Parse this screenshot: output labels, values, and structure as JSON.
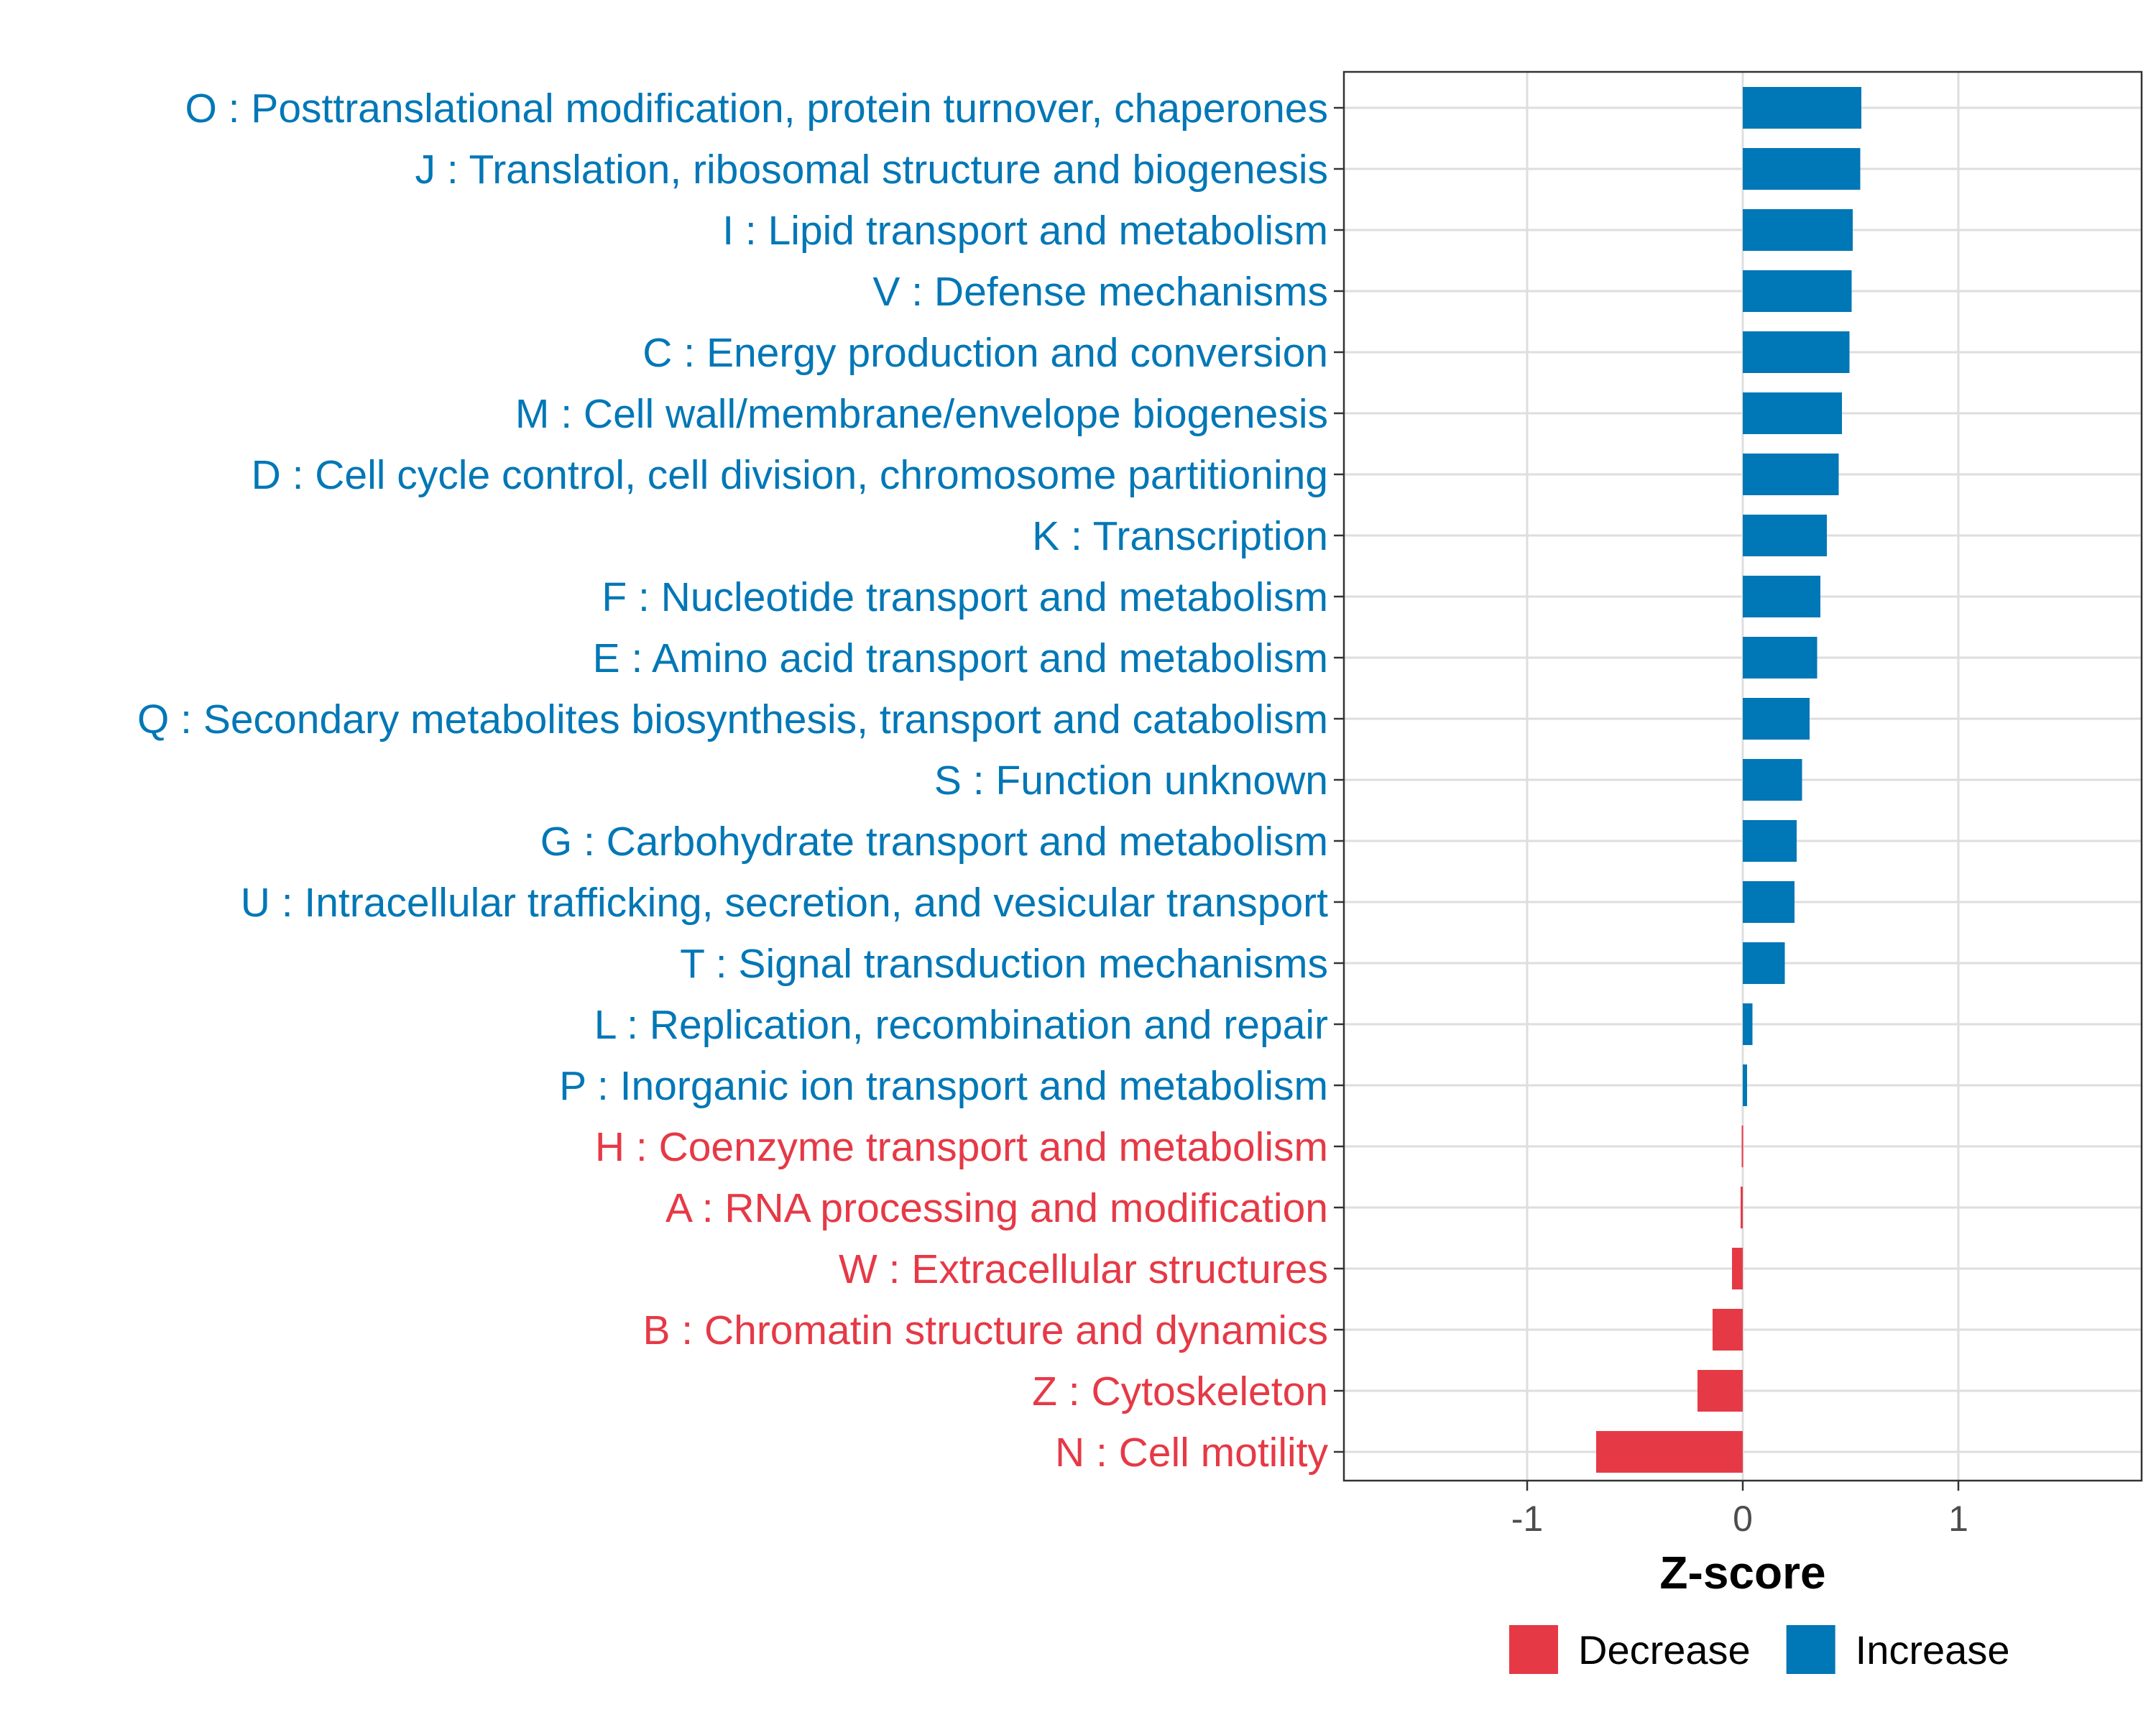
{
  "chart_data": {
    "type": "bar",
    "orientation": "horizontal",
    "title": "",
    "xlabel": "Z-score",
    "ylabel": "",
    "xlim": [
      -1.85,
      1.85
    ],
    "xticks": [
      {
        "value": -1,
        "label": "-1"
      },
      {
        "value": 0,
        "label": "0"
      },
      {
        "value": 1,
        "label": "1"
      }
    ],
    "grid": true,
    "legend": {
      "position": "bottom",
      "entries": [
        {
          "label": "Decrease",
          "color": "#E63946"
        },
        {
          "label": "Increase",
          "color": "#0077B6"
        }
      ]
    },
    "bars": [
      {
        "category": "O : Posttranslational modification, protein turnover, chaperones",
        "value": 0.55,
        "group": "Increase"
      },
      {
        "category": "J : Translation, ribosomal structure and biogenesis",
        "value": 0.545,
        "group": "Increase"
      },
      {
        "category": "I : Lipid transport and metabolism",
        "value": 0.51,
        "group": "Increase"
      },
      {
        "category": "V : Defense mechanisms",
        "value": 0.505,
        "group": "Increase"
      },
      {
        "category": "C : Energy production and conversion",
        "value": 0.495,
        "group": "Increase"
      },
      {
        "category": "M : Cell wall/membrane/envelope biogenesis",
        "value": 0.46,
        "group": "Increase"
      },
      {
        "category": "D : Cell cycle control, cell division, chromosome partitioning",
        "value": 0.445,
        "group": "Increase"
      },
      {
        "category": "K : Transcription",
        "value": 0.39,
        "group": "Increase"
      },
      {
        "category": "F : Nucleotide transport and metabolism",
        "value": 0.36,
        "group": "Increase"
      },
      {
        "category": "E : Amino acid transport and metabolism",
        "value": 0.345,
        "group": "Increase"
      },
      {
        "category": "Q : Secondary metabolites biosynthesis, transport and catabolism",
        "value": 0.31,
        "group": "Increase"
      },
      {
        "category": "S : Function unknown",
        "value": 0.275,
        "group": "Increase"
      },
      {
        "category": "G : Carbohydrate transport and metabolism",
        "value": 0.25,
        "group": "Increase"
      },
      {
        "category": "U : Intracellular trafficking, secretion, and vesicular transport",
        "value": 0.24,
        "group": "Increase"
      },
      {
        "category": "T : Signal transduction mechanisms",
        "value": 0.195,
        "group": "Increase"
      },
      {
        "category": "L : Replication, recombination and repair",
        "value": 0.045,
        "group": "Increase"
      },
      {
        "category": "P : Inorganic ion transport and metabolism",
        "value": 0.02,
        "group": "Increase"
      },
      {
        "category": "H : Coenzyme transport and metabolism",
        "value": -0.005,
        "group": "Decrease"
      },
      {
        "category": "A : RNA processing and modification",
        "value": -0.01,
        "group": "Decrease"
      },
      {
        "category": "W : Extracellular structures",
        "value": -0.05,
        "group": "Decrease"
      },
      {
        "category": "B : Chromatin structure and dynamics",
        "value": -0.14,
        "group": "Decrease"
      },
      {
        "category": "Z : Cytoskeleton",
        "value": -0.21,
        "group": "Decrease"
      },
      {
        "category": "N : Cell motility",
        "value": -0.68,
        "group": "Decrease"
      }
    ]
  }
}
